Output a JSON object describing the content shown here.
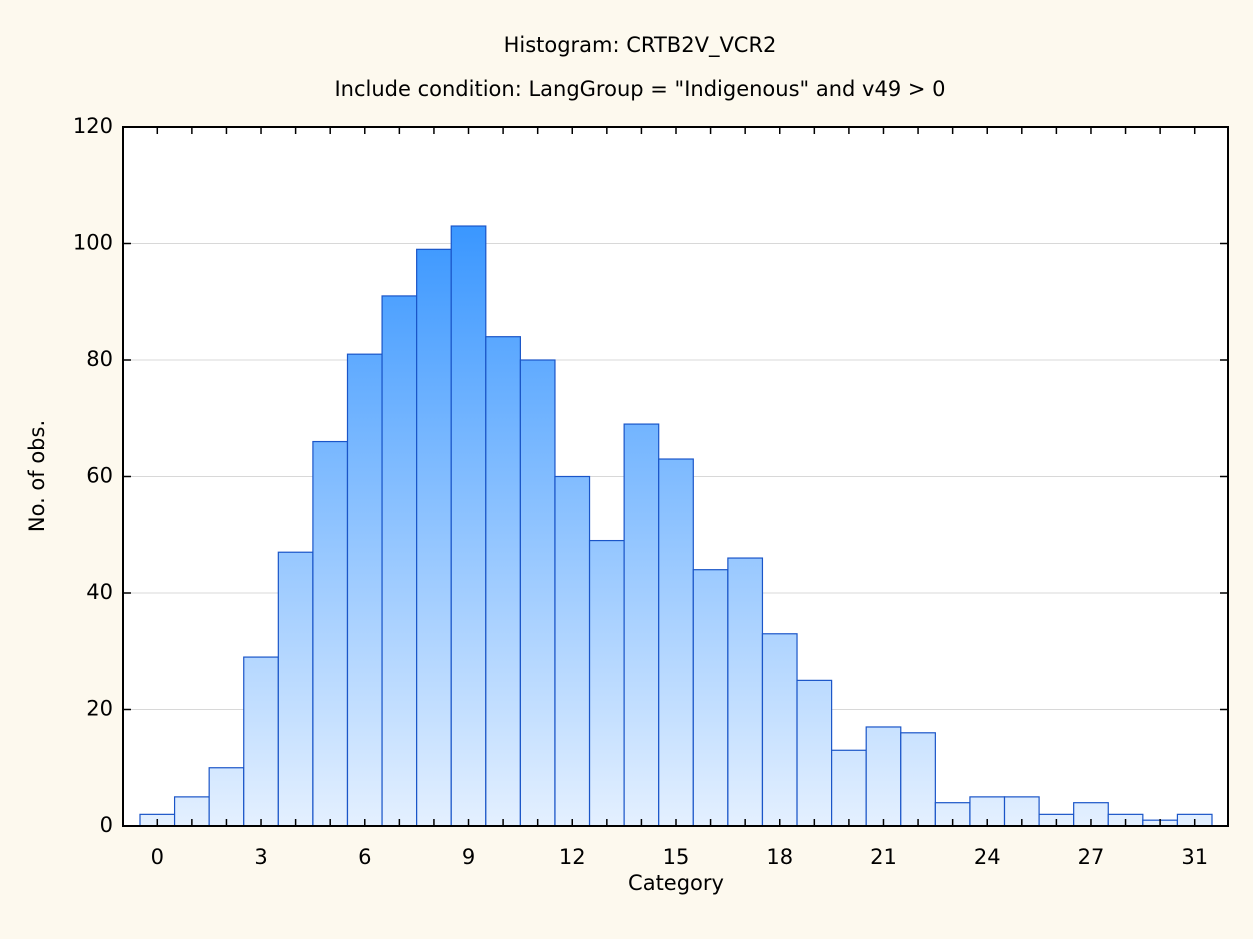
{
  "chart_data": {
    "type": "bar",
    "title": "Histogram: CRTB2V_VCR2",
    "subtitle": "Include condition: LangGroup = \"Indigenous\" and v49 > 0",
    "xlabel": "Category",
    "ylabel": "No. of obs.",
    "categories": [
      "0",
      null,
      null,
      "3",
      null,
      null,
      "6",
      null,
      null,
      "9",
      null,
      null,
      "12",
      null,
      null,
      "15",
      null,
      null,
      "18",
      null,
      null,
      "21",
      null,
      null,
      "24",
      null,
      null,
      "27",
      null,
      null,
      "31"
    ],
    "values": [
      2,
      5,
      10,
      29,
      47,
      66,
      81,
      91,
      99,
      103,
      84,
      80,
      60,
      49,
      69,
      63,
      44,
      46,
      33,
      25,
      13,
      17,
      16,
      4,
      5,
      5,
      2,
      4,
      2,
      1,
      2
    ],
    "color": "#1e88ff",
    "edge_color": "#1a55c8",
    "ylim": [
      0,
      120
    ],
    "yticks": [
      0,
      20,
      40,
      60,
      80,
      100,
      120
    ],
    "grid": true
  }
}
